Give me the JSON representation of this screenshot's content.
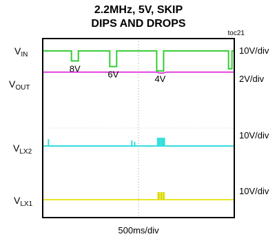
{
  "title_line1": "2.2MHz, 5V, SKIP",
  "title_line2": "DIPS AND DROPS",
  "figure_id": "toc21",
  "x_axis_label": "500ms/div",
  "chart_data": {
    "type": "line",
    "title": "2.2MHz, 5V, SKIP DIPS AND DROPS",
    "xlabel": "500ms/div",
    "grid": true,
    "x_divisions": 10,
    "y_divisions": 8,
    "series": [
      {
        "name": "VIN",
        "label_main": "V",
        "label_sub": "IN",
        "scale": "10V/div",
        "color": "#33cc33",
        "baseline_div": 7.45,
        "events": [
          {
            "x_div": 1.5,
            "dip_div": 0.45,
            "label": "8V"
          },
          {
            "x_div": 3.5,
            "dip_div": 0.7,
            "label": "6V"
          },
          {
            "x_div": 5.95,
            "dip_div": 0.9,
            "label": "4V"
          },
          {
            "x_div": 9.7,
            "dip_div": 0.8,
            "label": ""
          }
        ]
      },
      {
        "name": "VOUT",
        "label_main": "V",
        "label_sub": "OUT",
        "scale": "2V/div",
        "color": "#e040e0",
        "baseline_div": 6.5
      },
      {
        "name": "VLX2",
        "label_main": "V",
        "label_sub": "LX2",
        "scale": "10V/div",
        "color": "#33dddd",
        "baseline_div": 3.2
      },
      {
        "name": "VLX1",
        "label_main": "V",
        "label_sub": "LX1",
        "scale": "10V/div",
        "color": "#e6e628",
        "baseline_div": 0.8
      }
    ]
  }
}
